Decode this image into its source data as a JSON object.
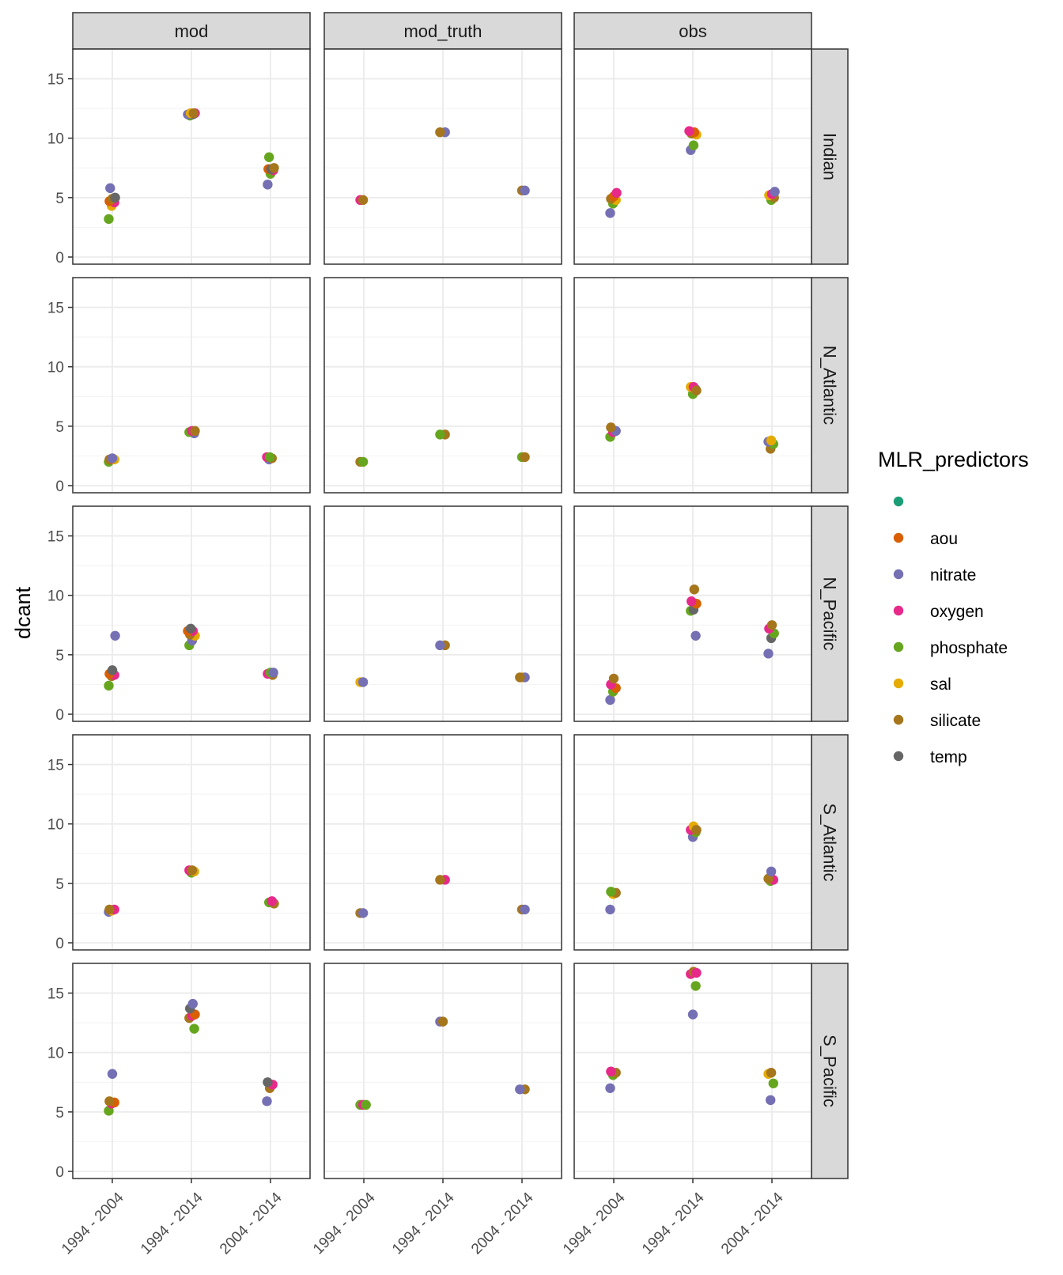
{
  "chart_data": {
    "type": "scatter",
    "facet_columns": [
      "mod",
      "mod_truth",
      "obs"
    ],
    "facet_rows": [
      "Indian",
      "N_Atlantic",
      "N_Pacific",
      "S_Atlantic",
      "S_Pacific"
    ],
    "x_categories": [
      "1994 - 2004",
      "1994 - 2014",
      "2004 - 2014"
    ],
    "ylabel": "dcant",
    "xlabel": "",
    "ylim": [
      -0.6,
      17.5
    ],
    "y_ticks": [
      0,
      5,
      10,
      15
    ],
    "grid": true,
    "legend": {
      "title": "MLR_predictors",
      "position": "right",
      "entries": [
        {
          "name": "",
          "color": "#1B9E77"
        },
        {
          "name": "aou",
          "color": "#D95F02"
        },
        {
          "name": "nitrate",
          "color": "#7570B3"
        },
        {
          "name": "oxygen",
          "color": "#E7298A"
        },
        {
          "name": "phosphate",
          "color": "#66A61E"
        },
        {
          "name": "sal",
          "color": "#E6AB02"
        },
        {
          "name": "silicate",
          "color": "#A6761D"
        },
        {
          "name": "temp",
          "color": "#666666"
        }
      ]
    },
    "points": {
      "mod": {
        "Indian": [
          [
            0,
            3.2,
            "phosphate"
          ],
          [
            0,
            4.3,
            "sal"
          ],
          [
            0,
            4.6,
            "oxygen"
          ],
          [
            0,
            4.7,
            "aou"
          ],
          [
            0,
            4.9,
            "silicate"
          ],
          [
            0,
            5.0,
            "temp"
          ],
          [
            0,
            5.8,
            "nitrate"
          ],
          [
            1,
            12.0,
            "aou"
          ],
          [
            1,
            12.1,
            "oxygen"
          ],
          [
            1,
            11.9,
            "phosphate"
          ],
          [
            1,
            12.0,
            "temp"
          ],
          [
            1,
            12.0,
            "nitrate"
          ],
          [
            1,
            12.1,
            "sal"
          ],
          [
            1,
            12.1,
            "silicate"
          ],
          [
            2,
            6.1,
            "nitrate"
          ],
          [
            2,
            7.0,
            "phosphate"
          ],
          [
            2,
            7.3,
            "oxygen"
          ],
          [
            2,
            7.4,
            "aou"
          ],
          [
            2,
            7.4,
            "temp"
          ],
          [
            2,
            7.5,
            "silicate"
          ],
          [
            2,
            8.4,
            "phosphate"
          ]
        ],
        "N_Atlantic": [
          [
            0,
            2.0,
            "phosphate"
          ],
          [
            0,
            2.2,
            "oxygen"
          ],
          [
            0,
            2.2,
            "sal"
          ],
          [
            0,
            2.2,
            "silicate"
          ],
          [
            0,
            2.3,
            "nitrate"
          ],
          [
            1,
            4.4,
            "nitrate"
          ],
          [
            1,
            4.5,
            "phosphate"
          ],
          [
            1,
            4.6,
            "oxygen"
          ],
          [
            1,
            4.6,
            "silicate"
          ],
          [
            2,
            2.2,
            "nitrate"
          ],
          [
            2,
            2.3,
            "silicate"
          ],
          [
            2,
            2.4,
            "oxygen"
          ],
          [
            2,
            2.4,
            "phosphate"
          ]
        ],
        "N_Pacific": [
          [
            0,
            2.4,
            "phosphate"
          ],
          [
            0,
            3.2,
            "silicate"
          ],
          [
            0,
            3.3,
            "oxygen"
          ],
          [
            0,
            3.4,
            "aou"
          ],
          [
            0,
            3.7,
            "temp"
          ],
          [
            0,
            6.6,
            "nitrate"
          ],
          [
            1,
            5.8,
            "phosphate"
          ],
          [
            1,
            6.2,
            "nitrate"
          ],
          [
            1,
            6.6,
            "sal"
          ],
          [
            1,
            6.7,
            "silicate"
          ],
          [
            1,
            7.0,
            "oxygen"
          ],
          [
            1,
            7.0,
            "aou"
          ],
          [
            1,
            7.2,
            "temp"
          ],
          [
            2,
            3.3,
            "silicate"
          ],
          [
            2,
            3.4,
            "oxygen"
          ],
          [
            2,
            3.5,
            "phosphate"
          ],
          [
            2,
            3.5,
            "nitrate"
          ]
        ],
        "S_Atlantic": [
          [
            0,
            2.6,
            "nitrate"
          ],
          [
            0,
            2.7,
            "sal"
          ],
          [
            0,
            2.8,
            "oxygen"
          ],
          [
            0,
            2.8,
            "silicate"
          ],
          [
            1,
            5.9,
            "phosphate"
          ],
          [
            1,
            6.0,
            "sal"
          ],
          [
            1,
            6.1,
            "oxygen"
          ],
          [
            1,
            6.1,
            "silicate"
          ],
          [
            2,
            3.3,
            "silicate"
          ],
          [
            2,
            3.4,
            "phosphate"
          ],
          [
            2,
            3.5,
            "oxygen"
          ]
        ],
        "S_Pacific": [
          [
            0,
            5.1,
            "phosphate"
          ],
          [
            0,
            5.7,
            "oxygen"
          ],
          [
            0,
            5.8,
            "aou"
          ],
          [
            0,
            5.9,
            "silicate"
          ],
          [
            0,
            8.2,
            "nitrate"
          ],
          [
            1,
            12.0,
            "phosphate"
          ],
          [
            1,
            12.9,
            "silicate"
          ],
          [
            1,
            13.1,
            "oxygen"
          ],
          [
            1,
            13.2,
            "aou"
          ],
          [
            1,
            13.7,
            "temp"
          ],
          [
            1,
            14.1,
            "nitrate"
          ],
          [
            2,
            5.9,
            "nitrate"
          ],
          [
            2,
            7.0,
            "silicate"
          ],
          [
            2,
            7.3,
            "oxygen"
          ],
          [
            2,
            7.5,
            "temp"
          ]
        ]
      },
      "mod_truth": {
        "Indian": [
          [
            0,
            4.8,
            "oxygen"
          ],
          [
            0,
            4.8,
            "silicate"
          ],
          [
            1,
            10.5,
            "nitrate"
          ],
          [
            1,
            10.5,
            "silicate"
          ],
          [
            2,
            5.6,
            "silicate"
          ],
          [
            2,
            5.6,
            "nitrate"
          ]
        ],
        "N_Atlantic": [
          [
            0,
            2.0,
            "silicate"
          ],
          [
            0,
            2.0,
            "phosphate"
          ],
          [
            1,
            4.3,
            "silicate"
          ],
          [
            1,
            4.3,
            "phosphate"
          ],
          [
            2,
            2.4,
            "phosphate"
          ],
          [
            2,
            2.4,
            "silicate"
          ]
        ],
        "N_Pacific": [
          [
            0,
            2.7,
            "sal"
          ],
          [
            0,
            2.7,
            "nitrate"
          ],
          [
            1,
            5.8,
            "silicate"
          ],
          [
            1,
            5.8,
            "nitrate"
          ],
          [
            2,
            3.1,
            "sal"
          ],
          [
            2,
            3.1,
            "nitrate"
          ],
          [
            2,
            3.1,
            "silicate"
          ]
        ],
        "S_Atlantic": [
          [
            0,
            2.5,
            "silicate"
          ],
          [
            0,
            2.5,
            "nitrate"
          ],
          [
            1,
            5.3,
            "oxygen"
          ],
          [
            1,
            5.3,
            "silicate"
          ],
          [
            2,
            2.8,
            "silicate"
          ],
          [
            2,
            2.8,
            "nitrate"
          ]
        ],
        "S_Pacific": [
          [
            0,
            5.6,
            "phosphate"
          ],
          [
            0,
            5.6,
            "oxygen"
          ],
          [
            0,
            5.6,
            "phosphate"
          ],
          [
            1,
            12.6,
            "nitrate"
          ],
          [
            1,
            12.6,
            "silicate"
          ],
          [
            2,
            6.9,
            "silicate"
          ],
          [
            2,
            6.9,
            "nitrate"
          ]
        ]
      },
      "obs": {
        "Indian": [
          [
            0,
            3.7,
            "nitrate"
          ],
          [
            0,
            4.5,
            "phosphate"
          ],
          [
            0,
            4.8,
            "sal"
          ],
          [
            0,
            4.9,
            "silicate"
          ],
          [
            0,
            5.1,
            "aou"
          ],
          [
            0,
            5.4,
            "oxygen"
          ],
          [
            1,
            9.0,
            "nitrate"
          ],
          [
            1,
            9.4,
            "phosphate"
          ],
          [
            1,
            10.3,
            "sal"
          ],
          [
            1,
            10.4,
            "silicate"
          ],
          [
            1,
            10.5,
            "aou"
          ],
          [
            1,
            10.6,
            "oxygen"
          ],
          [
            2,
            4.8,
            "phosphate"
          ],
          [
            2,
            5.0,
            "silicate"
          ],
          [
            2,
            5.2,
            "sal"
          ],
          [
            2,
            5.3,
            "oxygen"
          ],
          [
            2,
            5.5,
            "nitrate"
          ]
        ],
        "N_Atlantic": [
          [
            0,
            4.1,
            "phosphate"
          ],
          [
            0,
            4.5,
            "oxygen"
          ],
          [
            0,
            4.6,
            "nitrate"
          ],
          [
            0,
            4.9,
            "silicate"
          ],
          [
            1,
            7.7,
            "phosphate"
          ],
          [
            1,
            8.1,
            "nitrate"
          ],
          [
            1,
            8.3,
            "sal"
          ],
          [
            1,
            8.3,
            "oxygen"
          ],
          [
            1,
            8.0,
            "silicate"
          ],
          [
            2,
            3.1,
            "silicate"
          ],
          [
            2,
            3.5,
            "phosphate"
          ],
          [
            2,
            3.7,
            "nitrate"
          ],
          [
            2,
            3.8,
            "sal"
          ]
        ],
        "N_Pacific": [
          [
            0,
            1.2,
            "nitrate"
          ],
          [
            0,
            1.9,
            "phosphate"
          ],
          [
            0,
            2.2,
            "aou"
          ],
          [
            0,
            2.5,
            "oxygen"
          ],
          [
            0,
            3.0,
            "silicate"
          ],
          [
            1,
            6.6,
            "nitrate"
          ],
          [
            1,
            8.7,
            "phosphate"
          ],
          [
            1,
            8.8,
            "temp"
          ],
          [
            1,
            9.3,
            "aou"
          ],
          [
            1,
            9.5,
            "oxygen"
          ],
          [
            1,
            10.5,
            "silicate"
          ],
          [
            2,
            5.1,
            "nitrate"
          ],
          [
            2,
            6.4,
            "temp"
          ],
          [
            2,
            6.8,
            "phosphate"
          ],
          [
            2,
            7.2,
            "oxygen"
          ],
          [
            2,
            7.5,
            "silicate"
          ]
        ],
        "S_Atlantic": [
          [
            0,
            2.8,
            "nitrate"
          ],
          [
            0,
            4.1,
            "sal"
          ],
          [
            0,
            4.2,
            "silicate"
          ],
          [
            0,
            4.3,
            "phosphate"
          ],
          [
            1,
            8.9,
            "nitrate"
          ],
          [
            1,
            9.3,
            "phosphate"
          ],
          [
            1,
            9.5,
            "oxygen"
          ],
          [
            1,
            9.8,
            "sal"
          ],
          [
            1,
            9.5,
            "silicate"
          ],
          [
            2,
            5.2,
            "phosphate"
          ],
          [
            2,
            5.3,
            "oxygen"
          ],
          [
            2,
            5.4,
            "silicate"
          ],
          [
            2,
            6.0,
            "nitrate"
          ]
        ],
        "S_Pacific": [
          [
            0,
            7.0,
            "nitrate"
          ],
          [
            0,
            8.1,
            "phosphate"
          ],
          [
            0,
            8.3,
            "silicate"
          ],
          [
            0,
            8.4,
            "oxygen"
          ],
          [
            1,
            13.2,
            "nitrate"
          ],
          [
            1,
            15.6,
            "phosphate"
          ],
          [
            1,
            16.6,
            "oxygen"
          ],
          [
            1,
            16.8,
            "silicate"
          ],
          [
            1,
            16.7,
            "oxygen"
          ],
          [
            2,
            6.0,
            "nitrate"
          ],
          [
            2,
            7.4,
            "phosphate"
          ],
          [
            2,
            8.2,
            "sal"
          ],
          [
            2,
            8.3,
            "silicate"
          ]
        ]
      }
    }
  }
}
